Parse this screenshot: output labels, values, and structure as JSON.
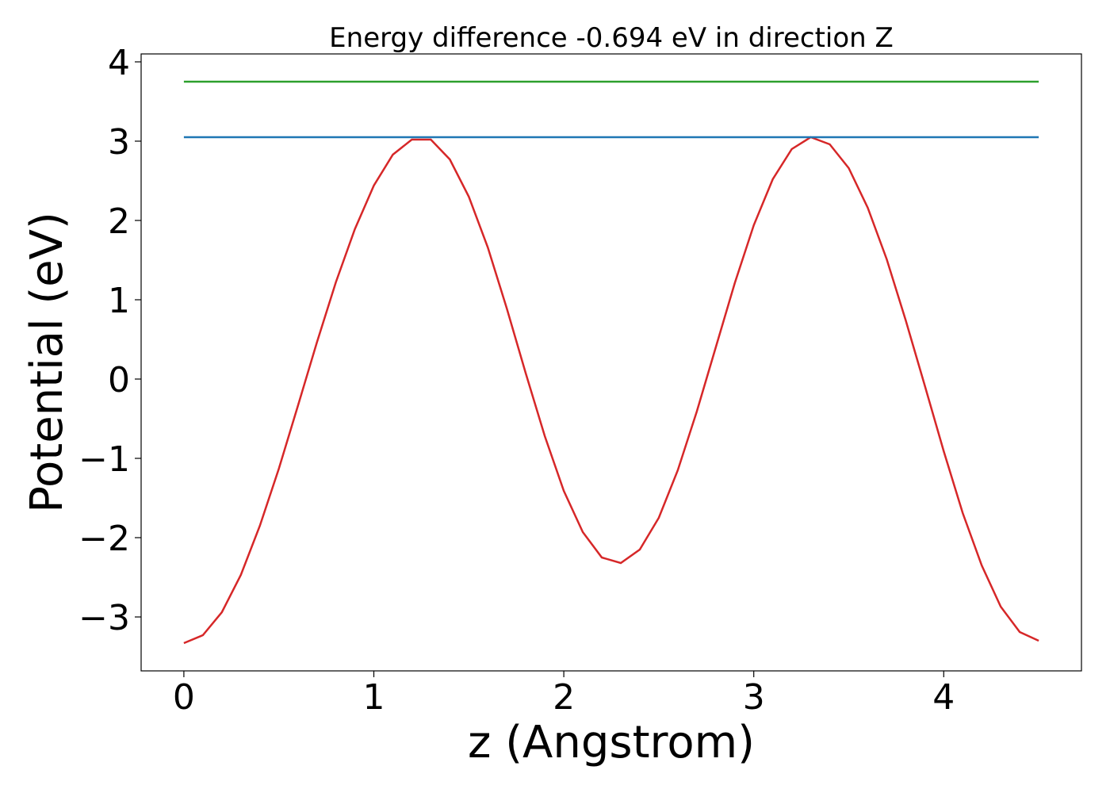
{
  "chart_data": {
    "type": "line",
    "title": "Energy difference -0.694 eV in direction Z",
    "xlabel": "z (Angstrom)",
    "ylabel": "Potential (eV)",
    "xlim": [
      -0.225,
      4.725
    ],
    "xticks": [
      0,
      1,
      2,
      3,
      4
    ],
    "ylim": [
      -3.68,
      4.1
    ],
    "yticks": [
      {
        "value": -3,
        "label": "−3"
      },
      {
        "value": -2,
        "label": "−2"
      },
      {
        "value": -1,
        "label": "−1"
      },
      0,
      1,
      2,
      3,
      4
    ],
    "grid": false,
    "series": [
      {
        "color": "#d62728",
        "x": [
          0,
          0.1,
          0.2,
          0.3,
          0.4,
          0.5,
          0.6,
          0.7,
          0.8,
          0.9,
          1.0,
          1.1,
          1.2,
          1.3,
          1.4,
          1.5,
          1.6,
          1.7,
          1.8,
          1.9,
          2.0,
          2.1,
          2.2,
          2.3,
          2.4,
          2.5,
          2.6,
          2.7,
          2.8,
          2.9,
          3.0,
          3.1,
          3.2,
          3.3,
          3.4,
          3.5,
          3.6,
          3.7,
          3.8,
          3.9,
          4.0,
          4.1,
          4.2,
          4.3,
          4.4,
          4.5
        ],
        "values": [
          -3.33,
          -3.23,
          -2.94,
          -2.47,
          -1.85,
          -1.13,
          -0.34,
          0.46,
          1.22,
          1.89,
          2.44,
          2.83,
          3.02,
          3.02,
          2.77,
          2.3,
          1.66,
          0.89,
          0.07,
          -0.72,
          -1.41,
          -1.93,
          -2.25,
          -2.32,
          -2.15,
          -1.75,
          -1.15,
          -0.41,
          0.4,
          1.21,
          1.94,
          2.52,
          2.9,
          3.05,
          2.96,
          2.66,
          2.16,
          1.51,
          0.74,
          -0.08,
          -0.91,
          -1.69,
          -2.35,
          -2.87,
          -3.19,
          -3.3
        ]
      },
      {
        "color": "#1f77b4",
        "x": [
          0,
          4.5
        ],
        "values": [
          3.05,
          3.05
        ]
      },
      {
        "color": "#2ca02c",
        "x": [
          0,
          4.5
        ],
        "values": [
          3.75,
          3.75
        ]
      }
    ]
  }
}
